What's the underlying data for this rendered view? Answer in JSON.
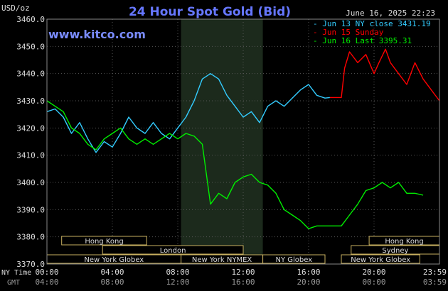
{
  "chart_data": {
    "type": "line",
    "title": "24 Hour Spot Gold (Bid)",
    "watermark": "www.kitco.com",
    "timestamp": "June 16, 2025 22:23",
    "ylabel": "USD/oz",
    "ylim": [
      3370,
      3460
    ],
    "yticks": [
      "3460.0",
      "3450.0",
      "3440.0",
      "3430.0",
      "3420.0",
      "3410.0",
      "3400.0",
      "3390.0",
      "3380.0",
      "3370.0"
    ],
    "xlim": [
      0,
      24
    ],
    "ny_time_label": "NY Time",
    "gmt_label": "GMT",
    "ny_ticks": [
      "00:00",
      "04:00",
      "08:00",
      "12:00",
      "16:00",
      "20:00",
      "23:59"
    ],
    "gmt_ticks": [
      "04:00",
      "08:00",
      "12:00",
      "16:00",
      "20:00",
      "00:00",
      "03:59"
    ],
    "sessions": [
      {
        "name": "Hong Kong",
        "start": 0.9,
        "end": 6.1,
        "row": 0
      },
      {
        "name": "London",
        "start": 3.4,
        "end": 12.0,
        "row": 1
      },
      {
        "name": "New York Globex",
        "start": 0,
        "end": 8.2,
        "row": 2
      },
      {
        "name": "New York NYMEX",
        "start": 8.2,
        "end": 13.2,
        "row": 2
      },
      {
        "name": "NY Globex",
        "start": 13.2,
        "end": 17.0,
        "row": 2
      },
      {
        "name": "Hong Kong",
        "start": 19.7,
        "end": 24,
        "row": 0
      },
      {
        "name": "Sydney",
        "start": 18.6,
        "end": 24,
        "row": 1
      },
      {
        "name": "New York Globex",
        "start": 18.0,
        "end": 22.8,
        "row": 2
      }
    ],
    "series": [
      {
        "name": "Jun 13 NY close 3431.19",
        "color": "#33ccff",
        "points": [
          [
            0,
            3426
          ],
          [
            0.5,
            3427
          ],
          [
            1,
            3424
          ],
          [
            1.5,
            3418
          ],
          [
            2,
            3422
          ],
          [
            2.5,
            3416
          ],
          [
            3,
            3411
          ],
          [
            3.5,
            3415
          ],
          [
            4,
            3413
          ],
          [
            4.5,
            3418
          ],
          [
            5,
            3424
          ],
          [
            5.5,
            3420
          ],
          [
            6,
            3418
          ],
          [
            6.5,
            3422
          ],
          [
            7,
            3418
          ],
          [
            7.5,
            3416
          ],
          [
            8,
            3420
          ],
          [
            8.5,
            3424
          ],
          [
            9,
            3430
          ],
          [
            9.5,
            3438
          ],
          [
            10,
            3440
          ],
          [
            10.5,
            3438
          ],
          [
            11,
            3432
          ],
          [
            11.5,
            3428
          ],
          [
            12,
            3424
          ],
          [
            12.5,
            3426
          ],
          [
            13,
            3422
          ],
          [
            13.5,
            3428
          ],
          [
            14,
            3430
          ],
          [
            14.5,
            3428
          ],
          [
            15,
            3431
          ],
          [
            15.5,
            3434
          ],
          [
            16,
            3436
          ],
          [
            16.5,
            3432
          ],
          [
            17,
            3431
          ],
          [
            17.3,
            3431.19
          ]
        ]
      },
      {
        "name": "Jun 15 Sunday",
        "color": "#ff0000",
        "points": [
          [
            17.3,
            3431.2
          ],
          [
            18,
            3431.2
          ],
          [
            18.2,
            3442
          ],
          [
            18.5,
            3448
          ],
          [
            19,
            3444
          ],
          [
            19.5,
            3447
          ],
          [
            20,
            3440
          ],
          [
            20.3,
            3444
          ],
          [
            20.7,
            3449
          ],
          [
            21,
            3444
          ],
          [
            21.5,
            3440
          ],
          [
            22,
            3436
          ],
          [
            22.5,
            3444
          ],
          [
            23,
            3438
          ],
          [
            23.5,
            3434
          ],
          [
            24,
            3430
          ]
        ]
      },
      {
        "name": "Jun 16 Last 3395.31",
        "color": "#00ee00",
        "points": [
          [
            0,
            3430
          ],
          [
            0.5,
            3428
          ],
          [
            1,
            3426
          ],
          [
            1.5,
            3420
          ],
          [
            2,
            3418
          ],
          [
            2.5,
            3414
          ],
          [
            3,
            3412
          ],
          [
            3.5,
            3416
          ],
          [
            4,
            3418
          ],
          [
            4.5,
            3420
          ],
          [
            5,
            3416
          ],
          [
            5.5,
            3414
          ],
          [
            6,
            3416
          ],
          [
            6.5,
            3414
          ],
          [
            7,
            3416
          ],
          [
            7.5,
            3418
          ],
          [
            8,
            3416
          ],
          [
            8.5,
            3418
          ],
          [
            9,
            3417
          ],
          [
            9.5,
            3414
          ],
          [
            10,
            3392
          ],
          [
            10.5,
            3396
          ],
          [
            11,
            3394
          ],
          [
            11.5,
            3400
          ],
          [
            12,
            3402
          ],
          [
            12.5,
            3403
          ],
          [
            13,
            3400
          ],
          [
            13.5,
            3399
          ],
          [
            14,
            3396
          ],
          [
            14.5,
            3390
          ],
          [
            15,
            3388
          ],
          [
            15.5,
            3386
          ],
          [
            16,
            3383
          ],
          [
            16.5,
            3384
          ],
          [
            17,
            3384
          ],
          [
            18,
            3384
          ],
          [
            18.5,
            3388
          ],
          [
            19,
            3392
          ],
          [
            19.5,
            3397
          ],
          [
            20,
            3398
          ],
          [
            20.5,
            3400
          ],
          [
            21,
            3398
          ],
          [
            21.5,
            3400
          ],
          [
            22,
            3396
          ],
          [
            22.5,
            3396
          ],
          [
            23,
            3395.31
          ]
        ]
      }
    ],
    "grid": true,
    "legend": "top-right",
    "highlight_region": [
      8.2,
      13.2
    ]
  }
}
